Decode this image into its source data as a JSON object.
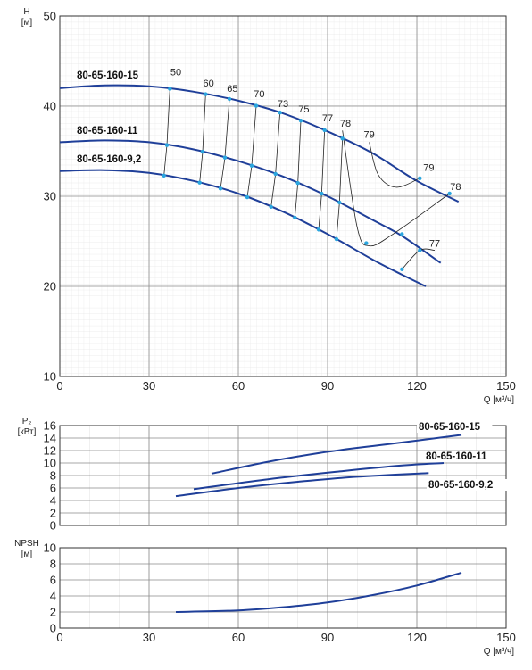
{
  "colors": {
    "curve": "#1f3f99",
    "marker": "#2aa6df",
    "iso": "#222222",
    "minor_grid": "#e6e6e6",
    "major_grid": "#8a8a8a"
  },
  "chart_data": [
    {
      "type": "line",
      "title": "",
      "ylabel_top": "H",
      "ylabel_unit": "[м]",
      "xlabel": "Q [м³/ч]",
      "xlim": [
        0,
        150
      ],
      "ylim": [
        10,
        50
      ],
      "x_ticks": [
        "0",
        "30",
        "60",
        "90",
        "120",
        "150"
      ],
      "y_ticks": [
        "10",
        "20",
        "30",
        "40",
        "50"
      ],
      "grid": true,
      "series": [
        {
          "name": "80-65-160-15",
          "x": [
            0,
            15,
            30,
            45,
            60,
            75,
            90,
            105,
            120,
            134
          ],
          "y": [
            42.0,
            42.3,
            42.2,
            41.6,
            40.6,
            39.2,
            37.2,
            34.8,
            31.7,
            29.4
          ]
        },
        {
          "name": "80-65-160-11",
          "x": [
            0,
            15,
            30,
            45,
            60,
            75,
            90,
            105,
            115,
            128
          ],
          "y": [
            36.0,
            36.2,
            36.0,
            35.2,
            33.9,
            32.2,
            30.0,
            27.4,
            25.6,
            22.6
          ]
        },
        {
          "name": "80-65-160-9,2",
          "x": [
            0,
            15,
            30,
            45,
            60,
            75,
            90,
            105,
            115,
            123
          ],
          "y": [
            32.8,
            32.9,
            32.6,
            31.7,
            30.3,
            28.3,
            25.8,
            23.0,
            21.3,
            20.0
          ]
        }
      ],
      "efficiency_labels": [
        {
          "text": "50",
          "x": 39,
          "y": 43.4
        },
        {
          "text": "60",
          "x": 50,
          "y": 42.2
        },
        {
          "text": "65",
          "x": 58,
          "y": 41.6
        },
        {
          "text": "70",
          "x": 67,
          "y": 41.0
        },
        {
          "text": "73",
          "x": 75,
          "y": 39.9
        },
        {
          "text": "75",
          "x": 82,
          "y": 39.3
        },
        {
          "text": "77",
          "x": 90,
          "y": 38.3
        },
        {
          "text": "78",
          "x": 96,
          "y": 37.7
        },
        {
          "text": "79",
          "x": 104,
          "y": 36.5
        },
        {
          "text": "79",
          "x": 124,
          "y": 32.8
        },
        {
          "text": "78",
          "x": 133,
          "y": 30.7
        },
        {
          "text": "77",
          "x": 126,
          "y": 24.4
        }
      ]
    },
    {
      "type": "line",
      "title": "",
      "ylabel_top": "P₂",
      "ylabel_unit": "[кВт]",
      "xlim": [
        0,
        150
      ],
      "ylim": [
        0,
        16
      ],
      "y_ticks": [
        "0",
        "2",
        "4",
        "6",
        "8",
        "10",
        "12",
        "14",
        "16"
      ],
      "grid": true,
      "series": [
        {
          "name": "80-65-160-15",
          "x": [
            51,
            70,
            90,
            110,
            135
          ],
          "y": [
            8.3,
            10.2,
            11.8,
            13.0,
            14.5
          ]
        },
        {
          "name": "80-65-160-11",
          "x": [
            45,
            70,
            95,
            115,
            129
          ],
          "y": [
            5.8,
            7.4,
            8.7,
            9.6,
            10.0
          ]
        },
        {
          "name": "80-65-160-9,2",
          "x": [
            39,
            60,
            80,
            100,
            124
          ],
          "y": [
            4.7,
            6.0,
            7.0,
            7.8,
            8.4
          ]
        }
      ]
    },
    {
      "type": "line",
      "title": "",
      "ylabel_top": "NPSH",
      "ylabel_unit": "[м]",
      "xlabel": "Q [м³/ч]",
      "xlim": [
        0,
        150
      ],
      "ylim": [
        0,
        10
      ],
      "x_ticks": [
        "0",
        "30",
        "60",
        "90",
        "120",
        "150"
      ],
      "y_ticks": [
        "0",
        "2",
        "4",
        "6",
        "8",
        "10"
      ],
      "grid": true,
      "series": [
        {
          "x": [
            39,
            60,
            75,
            90,
            105,
            120,
            135
          ],
          "y": [
            2.0,
            2.2,
            2.6,
            3.2,
            4.1,
            5.3,
            6.9
          ]
        }
      ]
    }
  ]
}
